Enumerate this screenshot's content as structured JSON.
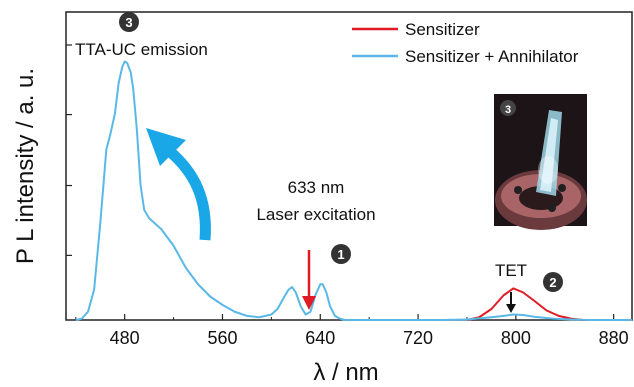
{
  "chart_data": {
    "type": "line",
    "xlabel": "λ / nm",
    "ylabel": "P L intensity  / a. u.",
    "xlim": [
      432,
      895
    ],
    "ylim": [
      0,
      1.12
    ],
    "xticks": [
      480,
      560,
      640,
      720,
      800,
      880
    ],
    "xtick_labels": [
      "480",
      "560",
      "640",
      "720",
      "800",
      "880"
    ],
    "yticks": [
      0.235,
      0.489,
      0.747,
      1.0
    ],
    "legend_position": "top-right",
    "series": [
      {
        "name": "Sensitizer",
        "color": "#e01b24",
        "x": [
          760,
          770,
          780,
          790,
          798,
          806,
          815,
          825,
          835,
          845,
          855,
          880
        ],
        "y": [
          0.0,
          0.01,
          0.04,
          0.09,
          0.115,
          0.1,
          0.07,
          0.035,
          0.015,
          0.005,
          0.0,
          0.0
        ]
      },
      {
        "name": "Sensitizer + Annihilator",
        "color": "#5ab8e6",
        "x": [
          440,
          445,
          450,
          455,
          460,
          465,
          468,
          472,
          475,
          478,
          480,
          482,
          485,
          487,
          490,
          493,
          496,
          500,
          505,
          510,
          515,
          520,
          525,
          530,
          540,
          550,
          560,
          570,
          580,
          590,
          600,
          605,
          610,
          614,
          617,
          620,
          624,
          628,
          632,
          636,
          640,
          642,
          645,
          648,
          652,
          656,
          660,
          670,
          700,
          720,
          740,
          760,
          780,
          790,
          798,
          806,
          815,
          830,
          845,
          860,
          880,
          895
        ],
        "y": [
          0.0,
          0.005,
          0.03,
          0.11,
          0.35,
          0.62,
          0.67,
          0.75,
          0.86,
          0.92,
          0.94,
          0.935,
          0.9,
          0.84,
          0.69,
          0.49,
          0.4,
          0.37,
          0.35,
          0.33,
          0.3,
          0.27,
          0.23,
          0.19,
          0.13,
          0.085,
          0.055,
          0.03,
          0.015,
          0.01,
          0.02,
          0.04,
          0.08,
          0.11,
          0.12,
          0.1,
          0.05,
          0.02,
          0.03,
          0.09,
          0.13,
          0.13,
          0.1,
          0.05,
          0.015,
          0.005,
          0.0,
          0.0,
          0.0,
          0.0,
          0.0,
          0.002,
          0.01,
          0.015,
          0.02,
          0.018,
          0.012,
          0.005,
          0.002,
          0.0,
          0.0,
          0.0
        ]
      }
    ],
    "annotations": [
      {
        "text": "TTA-UC emission",
        "badge": "3"
      },
      {
        "text_line1": "633 nm",
        "text_line2": "Laser excitation",
        "badge": "1"
      },
      {
        "text": "TET",
        "badge": "2"
      },
      {
        "photo_badge": "3"
      }
    ],
    "arrow_colors": {
      "laser": "#e01b24",
      "tet": "#111111",
      "upconversion": "#1aa7e8"
    }
  }
}
